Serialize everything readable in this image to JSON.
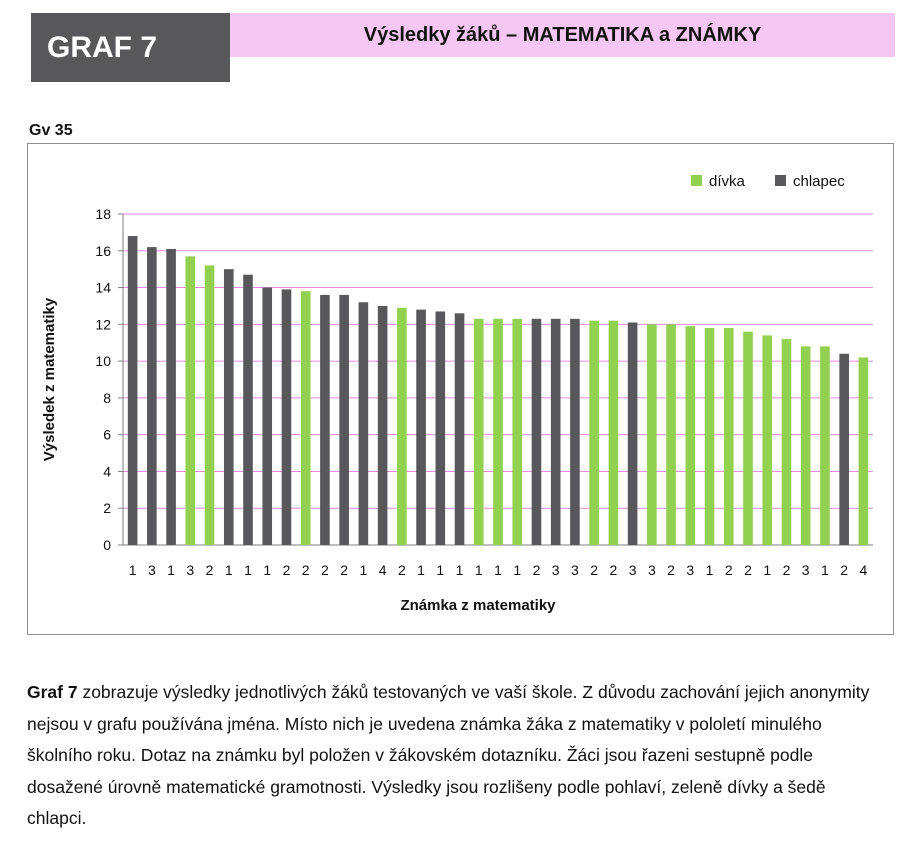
{
  "header": {
    "badge": "GRAF 7",
    "title": "Výsledky žáků – MATEMATIKA a ZNÁMKY"
  },
  "chart_code": "Gv 35",
  "chart_data": {
    "type": "bar",
    "title": "",
    "xlabel": "Známka z matematiky",
    "ylabel": "Výsledek z matematiky",
    "ylim": [
      0,
      18
    ],
    "yticks": [
      0,
      2,
      4,
      6,
      8,
      10,
      12,
      14,
      16,
      18
    ],
    "grid": true,
    "legend_position": "top-right",
    "legend": [
      {
        "key": "g",
        "label": "dívka",
        "color": "#92d050"
      },
      {
        "key": "b",
        "label": "chlapec",
        "color": "#58585a"
      }
    ],
    "categories": [
      "1",
      "3",
      "1",
      "3",
      "2",
      "1",
      "1",
      "1",
      "2",
      "2",
      "2",
      "2",
      "1",
      "4",
      "2",
      "1",
      "1",
      "1",
      "1",
      "1",
      "1",
      "2",
      "3",
      "3",
      "2",
      "2",
      "3",
      "3",
      "2",
      "3",
      "1",
      "2",
      "2",
      "1",
      "2",
      "3",
      "1",
      "2",
      "4"
    ],
    "values": [
      16.8,
      16.2,
      16.1,
      15.7,
      15.2,
      15.0,
      14.7,
      14.0,
      13.9,
      13.8,
      13.6,
      13.6,
      13.2,
      13.0,
      12.9,
      12.8,
      12.7,
      12.6,
      12.3,
      12.3,
      12.3,
      12.3,
      12.3,
      12.3,
      12.2,
      12.2,
      12.1,
      12.0,
      12.0,
      11.9,
      11.8,
      11.8,
      11.6,
      11.4,
      11.2,
      10.8,
      10.8,
      10.4,
      10.2
    ],
    "genders": [
      "b",
      "b",
      "b",
      "g",
      "g",
      "b",
      "b",
      "b",
      "b",
      "g",
      "b",
      "b",
      "b",
      "b",
      "g",
      "b",
      "b",
      "b",
      "g",
      "g",
      "g",
      "b",
      "b",
      "b",
      "g",
      "g",
      "b",
      "g",
      "g",
      "g",
      "g",
      "g",
      "g",
      "g",
      "g",
      "g",
      "g",
      "b",
      "g"
    ]
  },
  "description": {
    "lead": "Graf 7",
    "rest": " zobrazuje výsledky jednotlivých žáků testovaných ve vaší škole. Z důvodu zachování jejich anonymity nejsou v grafu používána jména. Místo nich je uvedena známka žáka z matematiky v pololetí minulého školního roku. Dotaz na známku byl položen v žákovském dotazníku. Žáci jsou řazeni sestupně podle dosažené úrovně matematické gramotnosti. Výsledky jsou rozlišeny podle pohlaví, zeleně dívky a šedě chlapci."
  }
}
